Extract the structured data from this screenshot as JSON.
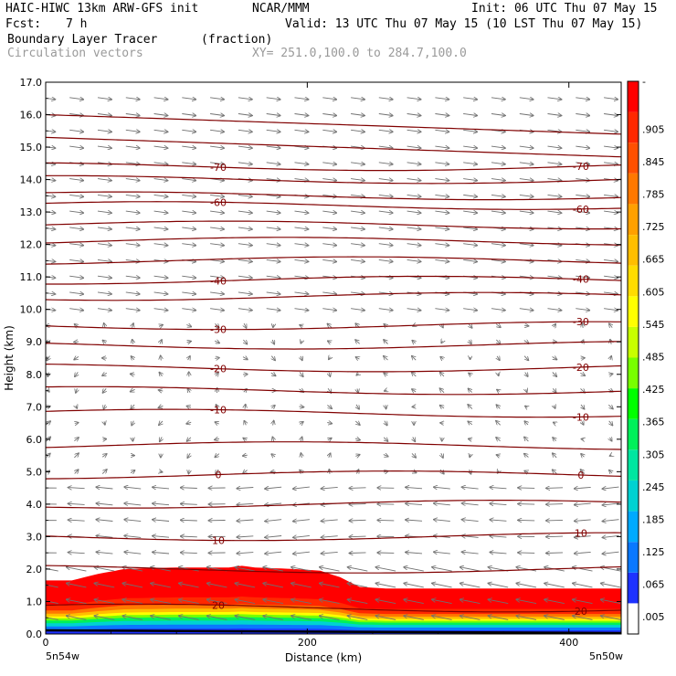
{
  "header": {
    "title_left": "HAIC-HIWC 13km ARW-GFS init",
    "title_org": "NCAR/MMM",
    "init": "Init: 06 UTC Thu 07 May 15",
    "fcst_label": "Fcst:",
    "fcst_value": "7 h",
    "valid": "Valid: 13 UTC Thu 07 May 15 (10 LST Thu 07 May 15)",
    "field_name": "Boundary Layer Tracer",
    "field_units": "(fraction)",
    "vectors": "Circulation vectors",
    "xy": "XY= 251.0,100.0 to 284.7,100.0"
  },
  "chart_data": {
    "type": "heatmap",
    "xlabel": "Distance (km)",
    "ylabel": "Height (km)",
    "xlim": [
      0,
      440
    ],
    "ylim": [
      0,
      17
    ],
    "x_ticks": [
      "0",
      "200",
      "400"
    ],
    "y_ticks": [
      "0.0",
      "1.0",
      "2.0",
      "3.0",
      "4.0",
      "5.0",
      "6.0",
      "7.0",
      "8.0",
      "9.0",
      "10.0",
      "11.0",
      "12.0",
      "13.0",
      "14.0",
      "15.0",
      "16.0",
      "17.0"
    ],
    "left_point": "5n54w",
    "right_point": "5n50w",
    "colorbar": {
      "labels": [
        ".005",
        ".065",
        ".125",
        ".185",
        ".245",
        ".305",
        ".365",
        ".425",
        ".485",
        ".545",
        ".605",
        ".665",
        ".725",
        ".785",
        ".845",
        ".905",
        "-"
      ],
      "colors": [
        "#ffffff",
        "#1e32ff",
        "#0a78ff",
        "#00aaff",
        "#00d2d2",
        "#00e6a0",
        "#00f05a",
        "#00ff00",
        "#78ff00",
        "#c8ff00",
        "#ffff00",
        "#ffdc00",
        "#ffbe00",
        "#ffa000",
        "#ff7800",
        "#ff5000",
        "#ff2800",
        "#ff0000"
      ]
    },
    "tracer_top_km": {
      "x": [
        0,
        20,
        40,
        60,
        100,
        140,
        150,
        160,
        190,
        210,
        225,
        240,
        260,
        300,
        350,
        400,
        440
      ],
      "y": [
        1.65,
        1.65,
        1.85,
        2.0,
        2.05,
        2.05,
        2.1,
        2.05,
        2.0,
        1.95,
        1.75,
        1.45,
        1.4,
        1.4,
        1.4,
        1.4,
        1.4
      ]
    },
    "temperature_contours_c": {
      "labeled": [
        {
          "value": "-70",
          "height_km": 14.4
        },
        {
          "value": "-60",
          "height_km": 13.2
        },
        {
          "value": "-40",
          "height_km": 10.9
        },
        {
          "value": "-30",
          "height_km": 9.5
        },
        {
          "value": "-20",
          "height_km": 8.2
        },
        {
          "value": "-10",
          "height_km": 6.8
        },
        {
          "value": "0",
          "height_km": 4.9
        },
        {
          "value": "10",
          "height_km": 3.0
        },
        {
          "value": "20",
          "height_km": 0.8
        }
      ],
      "unlabeled_heights_km": [
        16.0,
        15.3,
        14.0,
        13.5,
        12.6,
        12.1,
        11.5,
        10.4,
        8.9,
        7.5,
        5.8,
        4.0,
        2.0
      ]
    }
  }
}
